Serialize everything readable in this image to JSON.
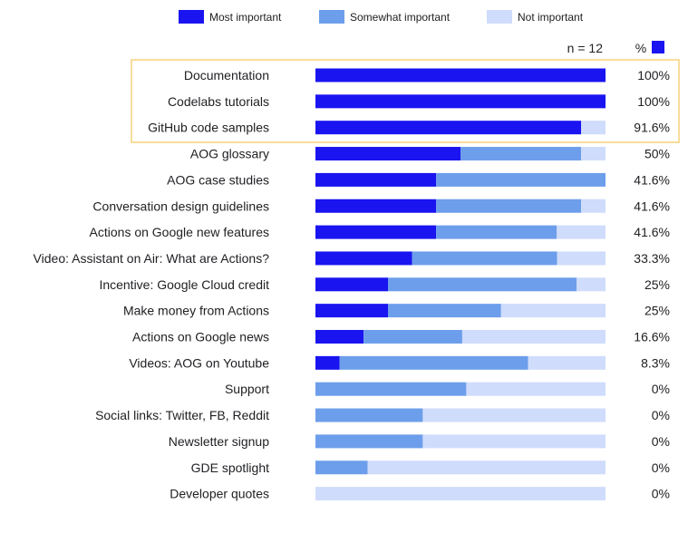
{
  "chart_data": {
    "type": "bar",
    "orientation": "horizontal",
    "stacked": true,
    "legend": {
      "placement": "top",
      "entries": [
        "Most important",
        "Somewhat important",
        "Not important"
      ]
    },
    "series": [
      {
        "name": "Most important",
        "color": "#1a14f0",
        "values": [
          100,
          100,
          91.6,
          50,
          41.6,
          41.6,
          41.6,
          33.3,
          25,
          25,
          16.6,
          8.3,
          0,
          0,
          0,
          0,
          0
        ]
      },
      {
        "name": "Somewhat important",
        "color": "#6d9eeb",
        "values": [
          0,
          0,
          0,
          41.6,
          58.4,
          50,
          41.6,
          50.0,
          65,
          39,
          34,
          65,
          52,
          37,
          37,
          18,
          0
        ]
      },
      {
        "name": "Not important",
        "color": "#cfdcfb",
        "values": [
          0,
          0,
          8.4,
          8.4,
          0,
          8.4,
          16.8,
          16.7,
          10,
          36,
          49.4,
          26.7,
          48,
          63,
          63,
          82,
          100
        ]
      }
    ],
    "categories": [
      "Documentation",
      "Codelabs tutorials",
      "GitHub code samples",
      "AOG glossary",
      "AOG case studies",
      "Conversation design guidelines",
      "Actions on Google new features",
      "Video: Assistant on Air: What are Actions?",
      "Incentive: Google Cloud credit",
      "Make money from Actions",
      "Actions on Google news",
      "Videos: AOG on Youtube",
      "Support",
      "Social links: Twitter, FB, Reddit",
      "Newsletter signup",
      "GDE spotlight",
      "Developer quotes"
    ],
    "value_labels": [
      "100%",
      "100%",
      "91.6%",
      "50%",
      "41.6%",
      "41.6%",
      "41.6%",
      "33.3%",
      "25%",
      "25%",
      "16.6%",
      "8.3%",
      "0%",
      "0%",
      "0%",
      "0%",
      "0%"
    ],
    "sample_size_label": "n = 12",
    "percent_header": "%",
    "xlim": [
      0,
      100
    ],
    "highlighted_categories": [
      "Documentation",
      "Codelabs tutorials",
      "GitHub code samples"
    ],
    "highlight_color": "#f5d27a"
  }
}
